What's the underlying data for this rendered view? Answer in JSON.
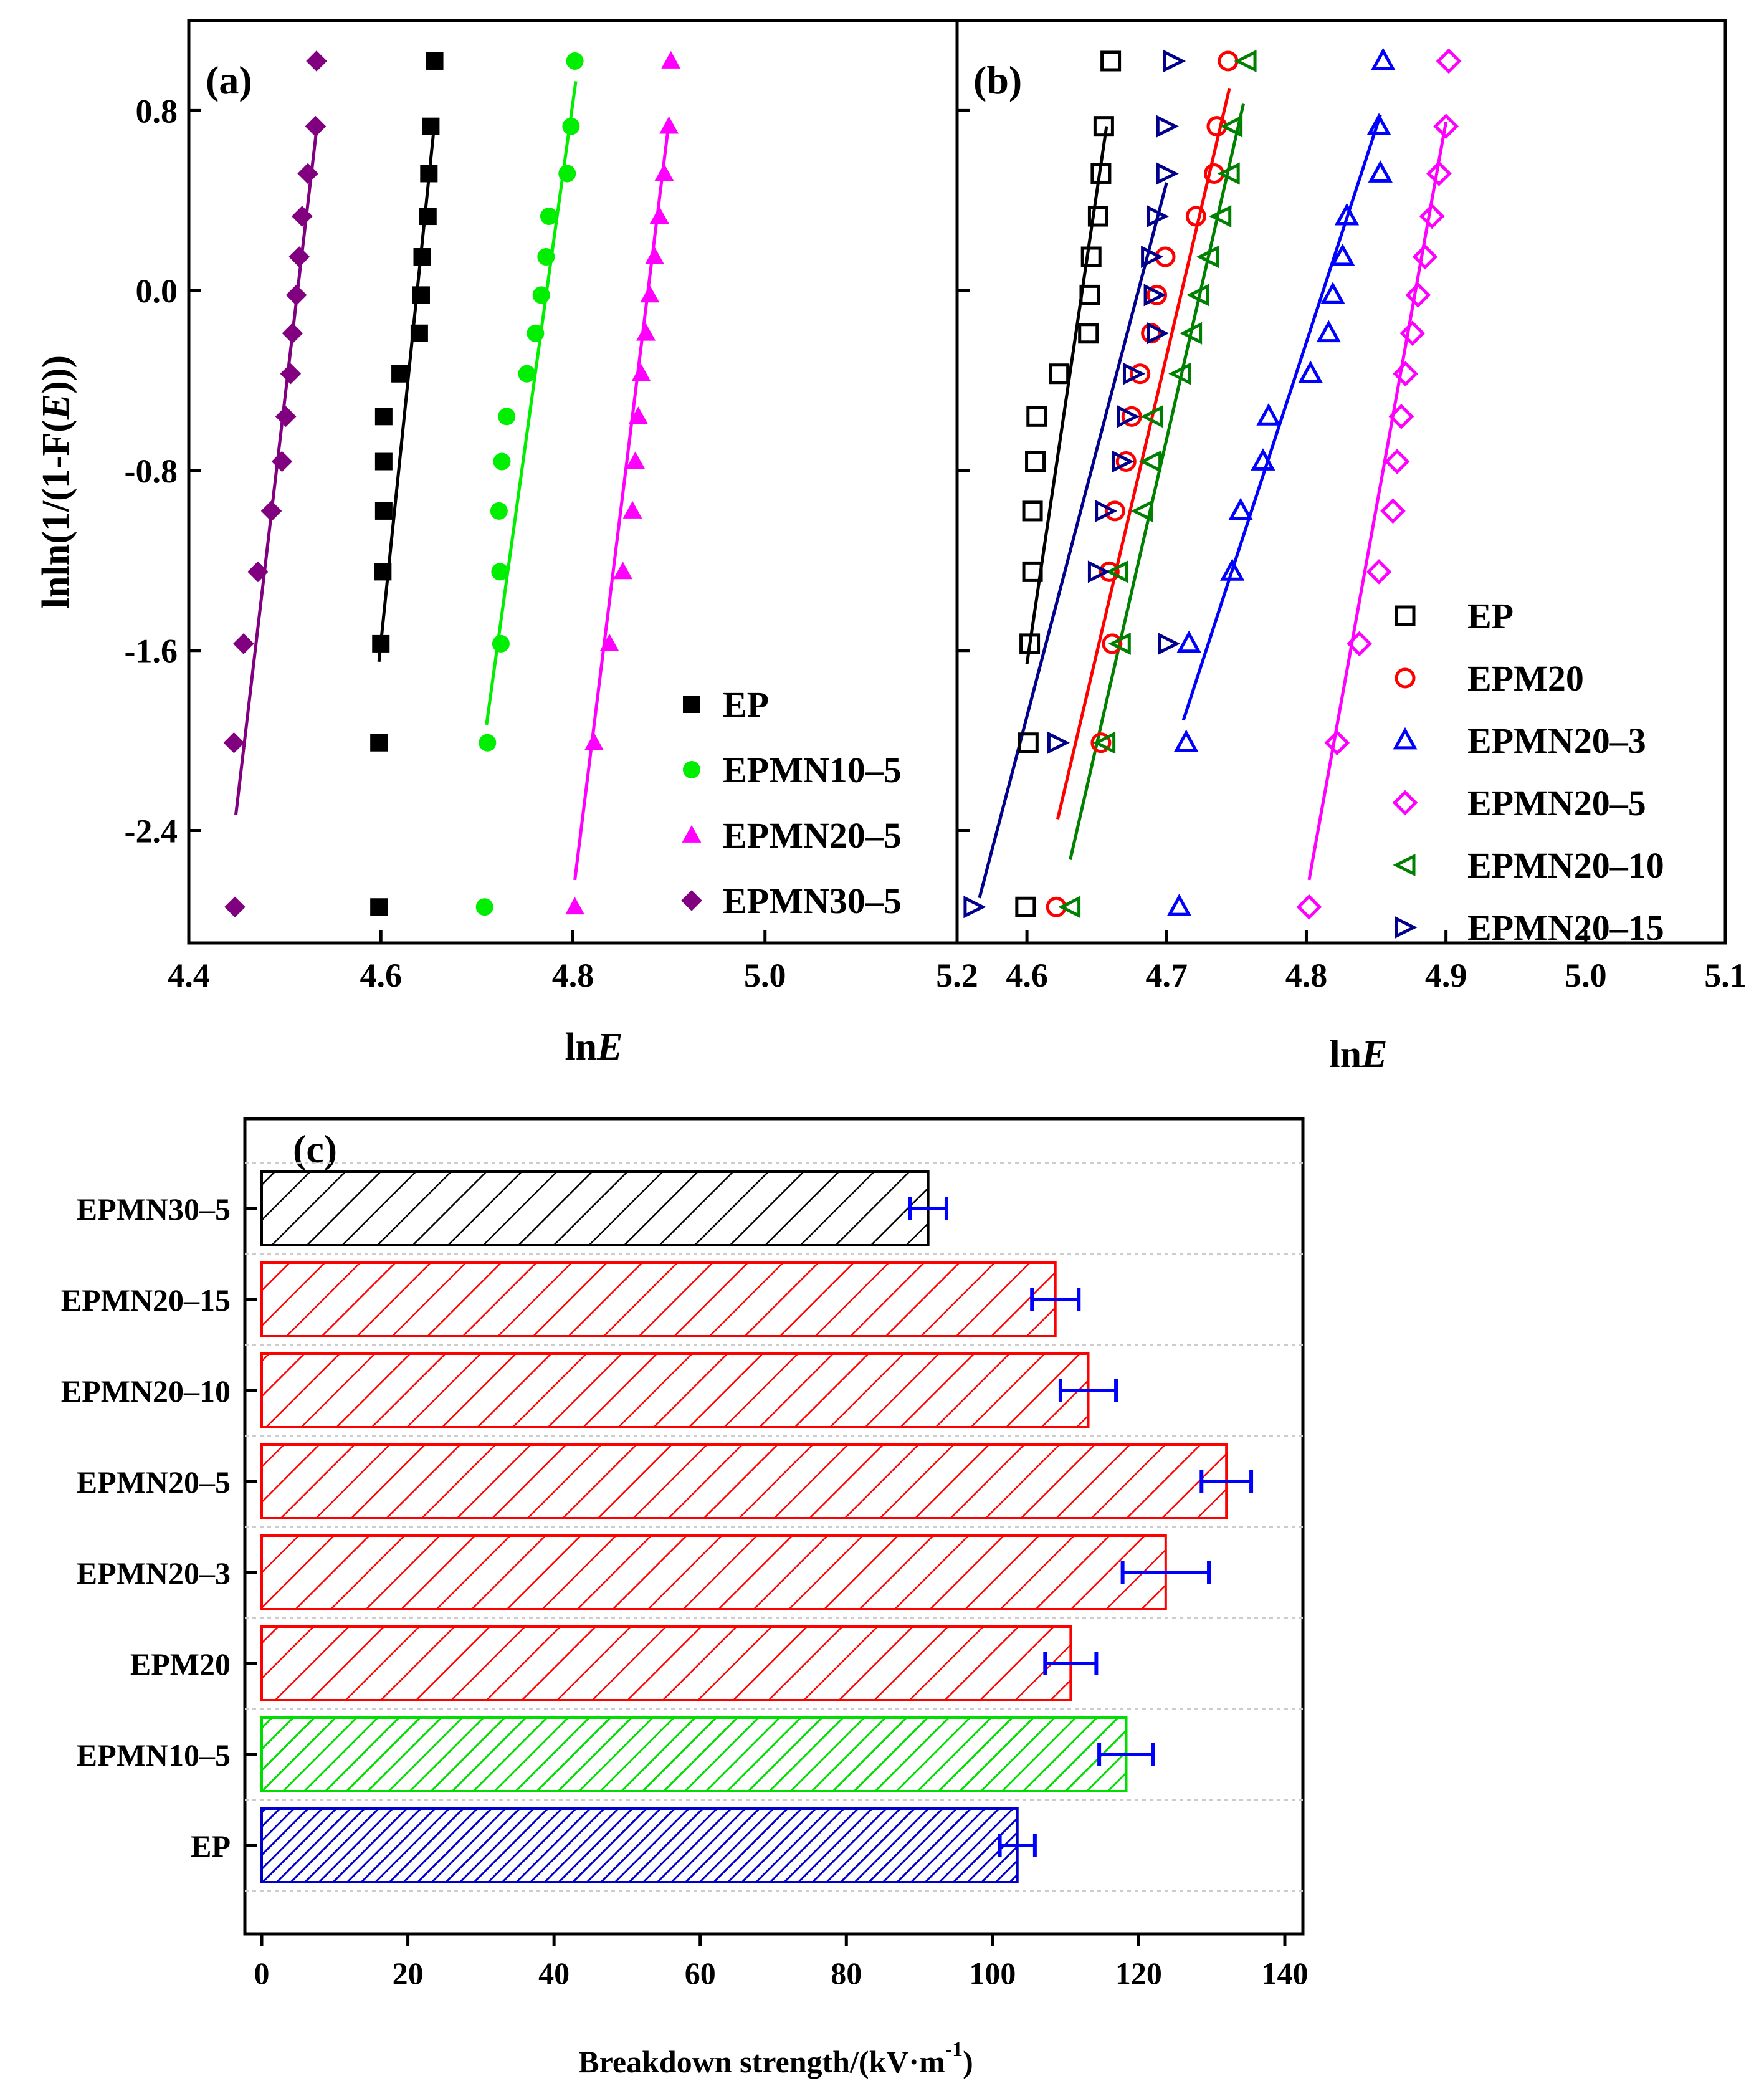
{
  "chart_data": [
    {
      "panel": "a",
      "type": "scatter",
      "label": "(a)",
      "xlabel": "lnE",
      "ylabel": "lnln(1/(1-F(E)))",
      "xlim": [
        4.4,
        5.2
      ],
      "ylim": [
        -2.9,
        1.2
      ],
      "xticks": [
        4.4,
        4.6,
        4.8,
        5.0,
        5.2
      ],
      "xtick_labels": [
        "4.4",
        "4.6",
        "4.8",
        "5.0",
        "5.2"
      ],
      "yticks": [
        0.8,
        0.0,
        -0.8,
        -1.6,
        -2.4
      ],
      "ytick_labels": [
        "0.8",
        "0.0",
        "-0.8",
        "-1.6",
        "-2.4"
      ],
      "legend_position": "bottom-right",
      "series": [
        {
          "name": "EP",
          "color": "#000000",
          "marker": "square-filled",
          "x": [
            4.598,
            4.598,
            4.6,
            4.602,
            4.603,
            4.603,
            4.603,
            4.62,
            4.64,
            4.642,
            4.643,
            4.649,
            4.65,
            4.652,
            4.656
          ],
          "y": [
            -2.74,
            -2.01,
            -1.57,
            -1.25,
            -0.98,
            -0.76,
            -0.56,
            -0.37,
            -0.19,
            -0.02,
            0.15,
            0.33,
            0.52,
            0.73,
            1.02
          ],
          "fit": [
            [
              4.598,
              -1.65
            ],
            [
              4.656,
              0.75
            ]
          ]
        },
        {
          "name": "EPMN10–5",
          "color": "#00ee00",
          "marker": "circle-filled",
          "x": [
            4.708,
            4.711,
            4.725,
            4.724,
            4.723,
            4.726,
            4.731,
            4.752,
            4.761,
            4.767,
            4.772,
            4.775,
            4.794,
            4.798,
            4.802
          ],
          "y": [
            -2.74,
            -2.01,
            -1.57,
            -1.25,
            -0.98,
            -0.76,
            -0.56,
            -0.37,
            -0.19,
            -0.02,
            0.15,
            0.33,
            0.52,
            0.73,
            1.02
          ],
          "fit": [
            [
              4.71,
              -1.93
            ],
            [
              4.803,
              0.93
            ]
          ]
        },
        {
          "name": "EPMN20–5",
          "color": "#ff00ff",
          "marker": "triangle-filled",
          "x": [
            4.802,
            4.822,
            4.838,
            4.852,
            4.862,
            4.865,
            4.868,
            4.871,
            4.876,
            4.88,
            4.885,
            4.89,
            4.895,
            4.9,
            4.902
          ],
          "y": [
            -2.74,
            -2.01,
            -1.57,
            -1.25,
            -0.98,
            -0.76,
            -0.56,
            -0.37,
            -0.19,
            -0.02,
            0.15,
            0.33,
            0.52,
            0.73,
            1.02
          ],
          "fit": [
            [
              4.802,
              -2.62
            ],
            [
              4.9,
              0.75
            ]
          ]
        },
        {
          "name": "EPMN30–5",
          "color": "#800080",
          "marker": "diamond-filled",
          "x": [
            4.448,
            4.447,
            4.457,
            4.472,
            4.486,
            4.497,
            4.501,
            4.506,
            4.508,
            4.512,
            4.515,
            4.518,
            4.524,
            4.532,
            4.533
          ],
          "y": [
            -2.74,
            -2.01,
            -1.57,
            -1.25,
            -0.98,
            -0.76,
            -0.56,
            -0.37,
            -0.19,
            -0.02,
            0.15,
            0.33,
            0.52,
            0.73,
            1.02
          ],
          "fit": [
            [
              4.449,
              -2.33
            ],
            [
              4.534,
              0.75
            ]
          ]
        }
      ]
    },
    {
      "panel": "b",
      "type": "scatter",
      "label": "(b)",
      "xlabel": "lnE",
      "ylabel": "",
      "xlim": [
        4.55,
        5.1
      ],
      "ylim": [
        -2.9,
        1.2
      ],
      "xticks": [
        4.6,
        4.7,
        4.8,
        4.9,
        5.0,
        5.1
      ],
      "xtick_labels": [
        "4.6",
        "4.7",
        "4.8",
        "4.9",
        "5.0",
        "5.1"
      ],
      "yticks": [
        0.8,
        0.0,
        -0.8,
        -1.6,
        -2.4
      ],
      "legend_position": "bottom-right",
      "series": [
        {
          "name": "EP",
          "color": "#000000",
          "marker": "square-open",
          "x": [
            4.599,
            4.601,
            4.602,
            4.604,
            4.604,
            4.606,
            4.607,
            4.623,
            4.644,
            4.645,
            4.646,
            4.651,
            4.653,
            4.655,
            4.66
          ],
          "y": [
            -2.74,
            -2.01,
            -1.57,
            -1.25,
            -0.98,
            -0.76,
            -0.56,
            -0.37,
            -0.19,
            -0.02,
            0.15,
            0.33,
            0.52,
            0.73,
            1.02
          ],
          "fit": [
            [
              4.6,
              -1.66
            ],
            [
              4.657,
              0.73
            ]
          ]
        },
        {
          "name": "EPM20",
          "color": "#ff0000",
          "marker": "circle-open",
          "x": [
            4.621,
            4.653,
            4.661,
            4.659,
            4.663,
            4.671,
            4.675,
            4.681,
            4.689,
            4.693,
            4.699,
            4.721,
            4.734,
            4.736,
            4.744
          ],
          "y": [
            -2.74,
            -2.01,
            -1.57,
            -1.25,
            -0.98,
            -0.76,
            -0.56,
            -0.37,
            -0.19,
            -0.02,
            0.15,
            0.33,
            0.52,
            0.73,
            1.02
          ],
          "fit": [
            [
              4.622,
              -2.35
            ],
            [
              4.745,
              0.9
            ]
          ]
        },
        {
          "name": "EPMN20–3",
          "color": "#0000ff",
          "marker": "triangle-open",
          "x": [
            4.709,
            4.714,
            4.716,
            4.747,
            4.753,
            4.769,
            4.773,
            4.803,
            4.816,
            4.819,
            4.826,
            4.829,
            4.853,
            4.852,
            4.855
          ],
          "y": [
            -2.74,
            -2.01,
            -1.57,
            -1.25,
            -0.98,
            -0.76,
            -0.56,
            -0.37,
            -0.19,
            -0.02,
            0.15,
            0.33,
            0.52,
            0.73,
            1.02
          ],
          "fit": [
            [
              4.712,
              -1.91
            ],
            [
              4.853,
              0.78
            ]
          ]
        },
        {
          "name": "EPMN20–5",
          "color": "#ff00ff",
          "marker": "diamond-open",
          "x": [
            4.802,
            4.822,
            4.838,
            4.852,
            4.862,
            4.865,
            4.868,
            4.871,
            4.876,
            4.88,
            4.885,
            4.89,
            4.895,
            4.9,
            4.902
          ],
          "y": [
            -2.74,
            -2.01,
            -1.57,
            -1.25,
            -0.98,
            -0.76,
            -0.56,
            -0.37,
            -0.19,
            -0.02,
            0.15,
            0.33,
            0.52,
            0.73,
            1.02
          ],
          "fit": [
            [
              4.802,
              -2.62
            ],
            [
              4.9,
              0.75
            ]
          ]
        },
        {
          "name": "EPMN20–10",
          "color": "#008000",
          "marker": "triangle-left-open",
          "x": [
            4.631,
            4.656,
            4.667,
            4.665,
            4.683,
            4.689,
            4.69,
            4.71,
            4.718,
            4.723,
            4.73,
            4.739,
            4.745,
            4.747,
            4.757
          ],
          "y": [
            -2.74,
            -2.01,
            -1.57,
            -1.25,
            -0.98,
            -0.76,
            -0.56,
            -0.37,
            -0.19,
            -0.02,
            0.15,
            0.33,
            0.52,
            0.73,
            1.02
          ],
          "fit": [
            [
              4.631,
              -2.53
            ],
            [
              4.755,
              0.83
            ]
          ]
        },
        {
          "name": "EPMN20–15",
          "color": "#00008b",
          "marker": "triangle-right-open",
          "x": [
            4.562,
            4.622,
            4.701,
            4.651,
            4.656,
            4.668,
            4.672,
            4.676,
            4.693,
            4.691,
            4.689,
            4.693,
            4.7,
            4.7,
            4.705
          ],
          "y": [
            -2.74,
            -2.01,
            -1.57,
            -1.25,
            -0.98,
            -0.76,
            -0.56,
            -0.37,
            -0.19,
            -0.02,
            0.15,
            0.33,
            0.52,
            0.73,
            1.02
          ],
          "fit": [
            [
              4.566,
              -2.7
            ],
            [
              4.7,
              0.48
            ]
          ]
        }
      ]
    },
    {
      "panel": "c",
      "type": "bar",
      "orientation": "horizontal",
      "label": "(c)",
      "xlabel": "Breakdown strength/(kV·m",
      "xlabel_sup": "-1",
      "xlabel_end": ")",
      "xlim": [
        0,
        140
      ],
      "xticks": [
        0,
        20,
        40,
        60,
        80,
        100,
        120,
        140
      ],
      "xtick_labels": [
        "0",
        "20",
        "40",
        "60",
        "80",
        "100",
        "120",
        "140"
      ],
      "categories": [
        "EPMN30–5",
        "EPMN20–15",
        "EPMN20–10",
        "EPMN20–5",
        "EPMN20–3",
        "EPM20",
        "EPMN10–5",
        "EP"
      ],
      "values": [
        91.2,
        108.6,
        113.1,
        132.0,
        123.7,
        110.7,
        118.3,
        103.4
      ],
      "errors": [
        2.5,
        3.2,
        3.8,
        3.4,
        5.9,
        3.5,
        3.7,
        2.4
      ],
      "bar_colors": [
        "#000000",
        "#ff0000",
        "#ff0000",
        "#ff0000",
        "#ff0000",
        "#ff0000",
        "#00dd00",
        "#0000cc"
      ],
      "hatch": [
        "wide",
        "wide",
        "wide",
        "wide",
        "wide",
        "wide",
        "medium",
        "dense"
      ],
      "error_color": "#0000ff"
    }
  ]
}
